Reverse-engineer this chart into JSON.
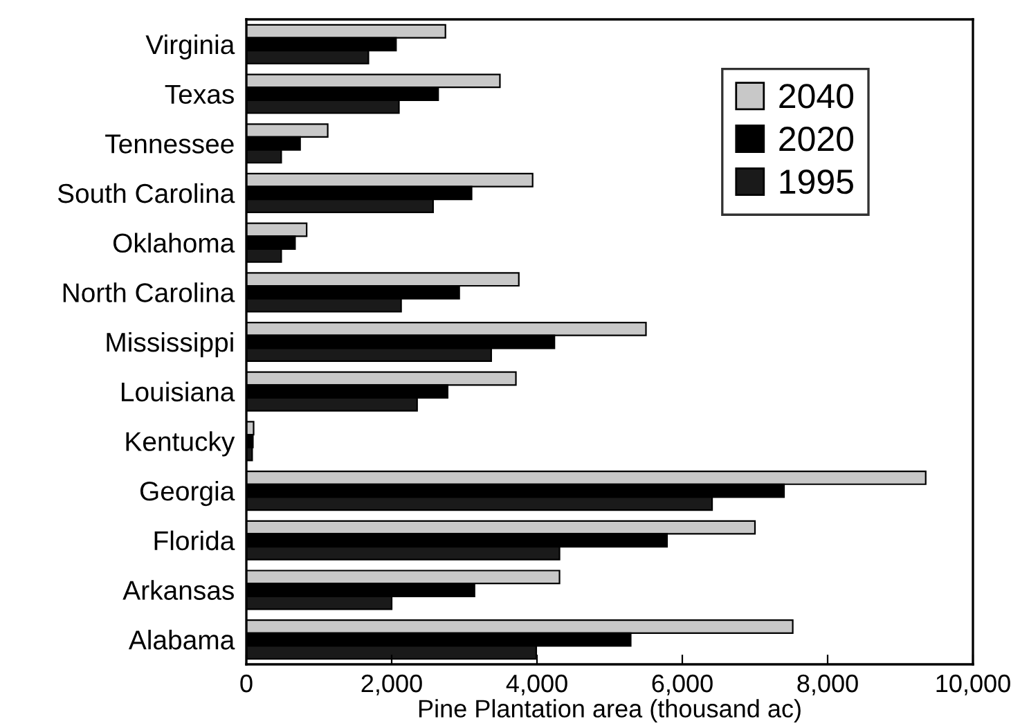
{
  "chart_data": {
    "type": "bar",
    "orientation": "horizontal",
    "xlabel": "Pine Plantation area (thousand ac)",
    "categories": [
      "Virginia",
      "Texas",
      "Tennessee",
      "South Carolina",
      "Oklahoma",
      "North Carolina",
      "Mississippi",
      "Louisiana",
      "Kentucky",
      "Georgia",
      "Florida",
      "Arkansas",
      "Alabama"
    ],
    "series": [
      {
        "name": "2040",
        "color": "#c8c8c8",
        "values": [
          2740,
          3490,
          1120,
          3940,
          830,
          3750,
          5500,
          3710,
          100,
          9350,
          7000,
          4310,
          7520
        ]
      },
      {
        "name": "2020",
        "color": "#000000",
        "values": [
          2060,
          2640,
          740,
          3100,
          670,
          2930,
          4240,
          2770,
          90,
          7400,
          5790,
          3140,
          5290
        ]
      },
      {
        "name": "1995",
        "color": "#1a1a1a",
        "values": [
          1680,
          2100,
          480,
          2570,
          480,
          2130,
          3370,
          2350,
          80,
          6410,
          4310,
          2000,
          3990
        ]
      }
    ],
    "xlim": [
      0,
      10000
    ],
    "xticks": [
      {
        "value": 0,
        "label": "0"
      },
      {
        "value": 2000,
        "label": "2,000"
      },
      {
        "value": 4000,
        "label": "4,000"
      },
      {
        "value": 6000,
        "label": "6,000"
      },
      {
        "value": 8000,
        "label": "8,000"
      },
      {
        "value": 10000,
        "label": "10,000"
      }
    ],
    "grid": false,
    "legend": "top right"
  }
}
